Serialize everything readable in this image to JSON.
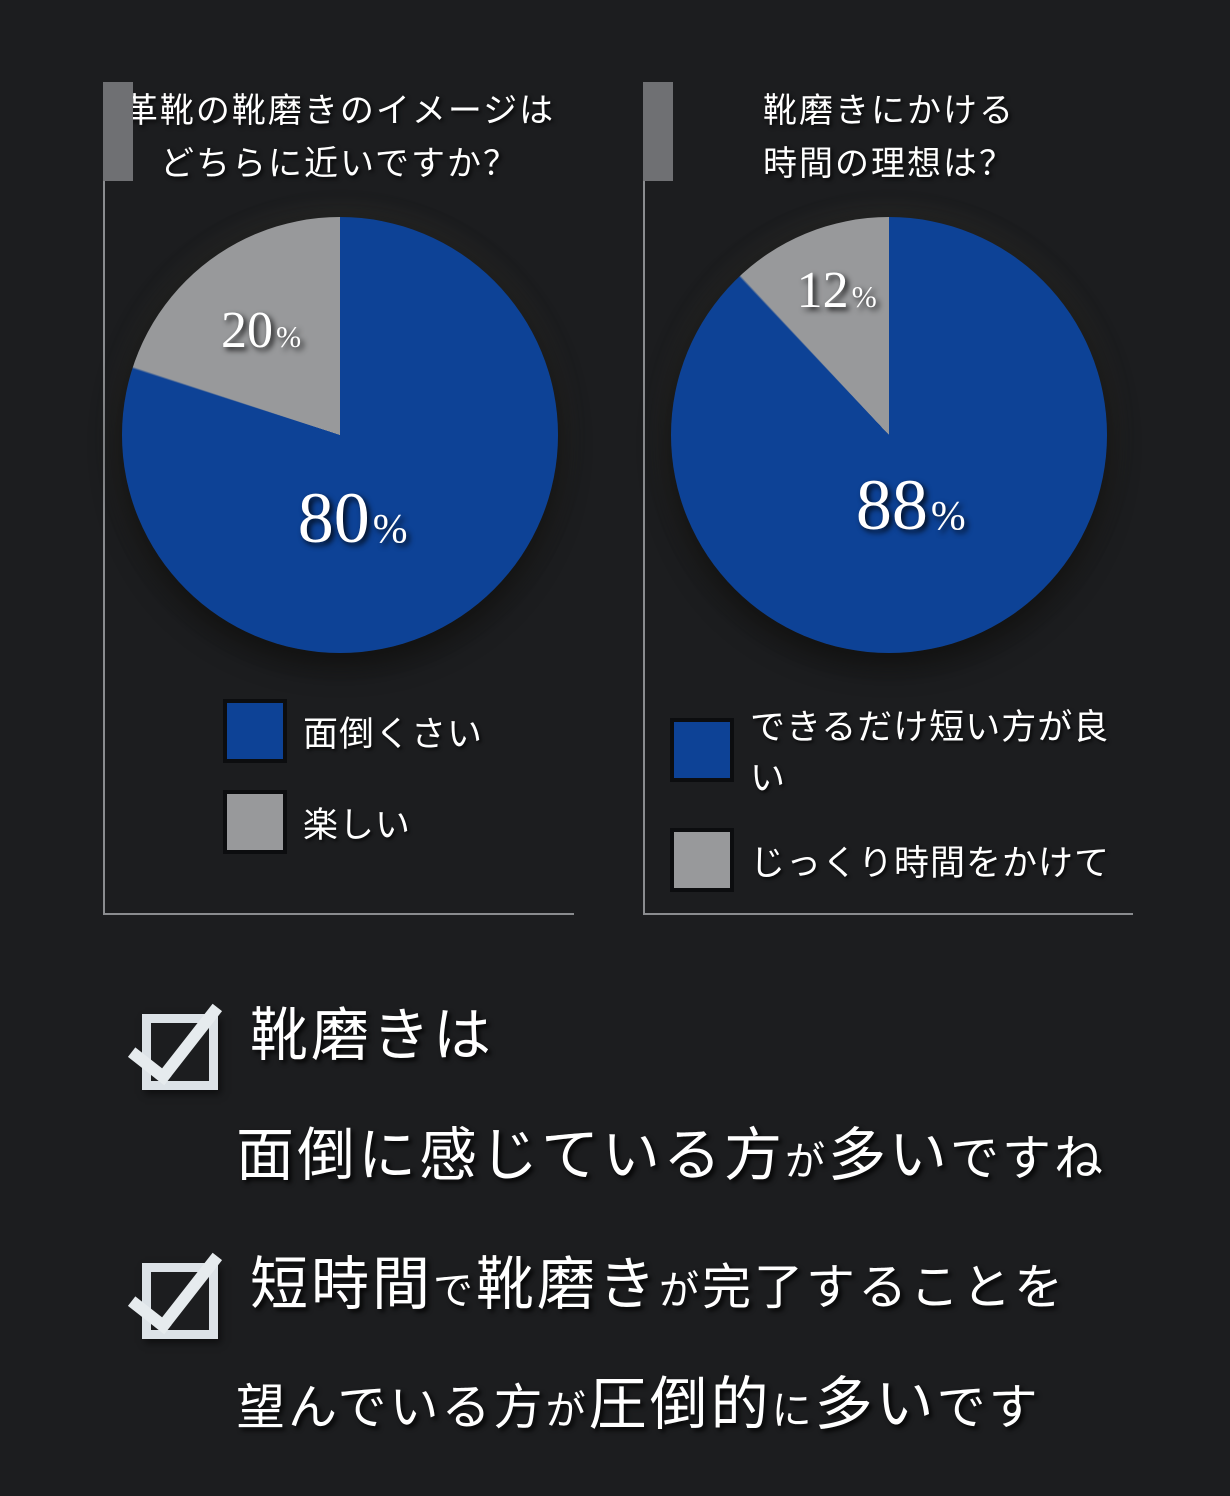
{
  "ui": {
    "percent_sign": "%",
    "background_color": "#1c1d1f",
    "accent_blue": "#0d4296",
    "accent_gray": "#a0a1a3",
    "underline_purple": "#6e5bb2",
    "underline_blue": "#8fb9e0",
    "checkbox_icon": "checked-box-with-overflowing-checkmark"
  },
  "panels": [
    {
      "title_lines": [
        "革靴の靴磨きのイメージは",
        "どちらに近いですか？"
      ]
    },
    {
      "title_lines": [
        "靴磨きにかける",
        "時間の理想は？"
      ]
    }
  ],
  "chart_data": [
    {
      "type": "pie",
      "title": "革靴の靴磨きのイメージは どちらに近いですか？",
      "labels": [
        "面倒くさい",
        "楽しい"
      ],
      "values": [
        80,
        20
      ],
      "colors": [
        "#0d4296",
        "#98999b"
      ],
      "data_labels": [
        "80%",
        "20%"
      ],
      "start_angle_deg": 0,
      "direction": "clockwise",
      "legend_position": "bottom",
      "grid": false
    },
    {
      "type": "pie",
      "title": "靴磨きにかける 時間の理想は？",
      "labels": [
        "できるだけ短い方が良い",
        "じっくり時間をかけて"
      ],
      "values": [
        88,
        12
      ],
      "colors": [
        "#0d4296",
        "#98999b"
      ],
      "data_labels": [
        "88%",
        "12%"
      ],
      "start_angle_deg": 0,
      "direction": "clockwise",
      "legend_position": "bottom",
      "grid": false
    }
  ],
  "conclusions": [
    {
      "checked": true,
      "lines": [
        {
          "groups": [
            {
              "bar": null,
              "segs": [
                {
                  "t": "靴磨きは",
                  "size": "big"
                }
              ]
            }
          ]
        },
        {
          "groups": [
            {
              "bar": "purple",
              "segs": [
                {
                  "t": "面倒に感じている",
                  "size": "big"
                }
              ]
            },
            {
              "bar": null,
              "segs": [
                {
                  "t": "方",
                  "size": "big"
                },
                {
                  "t": "が",
                  "size": "small"
                },
                {
                  "t": "多い",
                  "size": "big"
                },
                {
                  "t": "ですね",
                  "size": "med"
                }
              ]
            }
          ]
        }
      ]
    },
    {
      "checked": true,
      "lines": [
        {
          "groups": [
            {
              "bar": "blue",
              "segs": [
                {
                  "t": "短時間",
                  "size": "big"
                },
                {
                  "t": "で",
                  "size": "small"
                },
                {
                  "t": "靴磨き",
                  "size": "big"
                }
              ]
            },
            {
              "bar": null,
              "segs": [
                {
                  "t": "が",
                  "size": "small"
                },
                {
                  "t": "完了することを",
                  "size": "med"
                }
              ]
            }
          ]
        },
        {
          "groups": [
            {
              "bar": null,
              "segs": [
                {
                  "t": "望んでいる方",
                  "size": "med"
                },
                {
                  "t": "が",
                  "size": "small"
                }
              ]
            },
            {
              "bar": "blue",
              "segs": [
                {
                  "t": "圧倒的",
                  "size": "big"
                },
                {
                  "t": "に",
                  "size": "small"
                },
                {
                  "t": "多い",
                  "size": "big"
                }
              ]
            },
            {
              "bar": null,
              "segs": [
                {
                  "t": "です",
                  "size": "med"
                }
              ]
            }
          ]
        }
      ]
    }
  ]
}
